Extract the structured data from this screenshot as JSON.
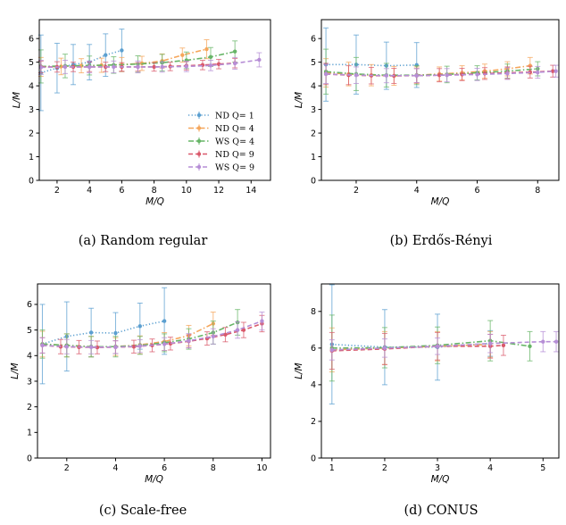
{
  "chart_data": [
    {
      "type": "line",
      "caption": "(a) Random regular",
      "xlabel": "M/Q",
      "ylabel": "L/M",
      "xlim": [
        0.9,
        15.2
      ],
      "ylim": [
        0,
        6.8
      ],
      "xticks": [
        2,
        4,
        6,
        8,
        10,
        12,
        14
      ],
      "yticks": [
        0,
        1,
        2,
        3,
        4,
        5,
        6
      ],
      "grid": false,
      "legend": {
        "position": "lower-right",
        "entries": [
          "ND Q= 1",
          "ND Q= 4",
          "WS Q= 4",
          "ND Q= 9",
          "WS Q= 9"
        ]
      },
      "series": [
        {
          "name": "ND Q= 1",
          "style": "dotted",
          "color": "#5b9fd0",
          "x": [
            1,
            2,
            3,
            4,
            5,
            6
          ],
          "y": [
            4.55,
            4.75,
            4.9,
            5.0,
            5.3,
            5.5
          ],
          "err": [
            1.6,
            1.05,
            0.85,
            0.75,
            0.9,
            0.9
          ]
        },
        {
          "name": "ND Q= 4",
          "style": "dashdot",
          "color": "#f5a65b",
          "x": [
            1,
            2.25,
            3.5,
            4.75,
            6,
            7.25,
            8.5,
            9.75,
            11.25
          ],
          "y": [
            4.8,
            4.82,
            4.85,
            4.87,
            4.9,
            4.95,
            5.05,
            5.3,
            5.55
          ],
          "err": [
            0.4,
            0.35,
            0.3,
            0.3,
            0.3,
            0.3,
            0.3,
            0.3,
            0.4
          ]
        },
        {
          "name": "WS Q= 4",
          "style": "dashdot",
          "color": "#67b567",
          "x": [
            1,
            2.5,
            4,
            5.5,
            7,
            8.5,
            10,
            11.5,
            13
          ],
          "y": [
            4.82,
            4.84,
            4.86,
            4.88,
            4.92,
            4.98,
            5.08,
            5.22,
            5.45
          ],
          "err": [
            0.7,
            0.5,
            0.4,
            0.35,
            0.35,
            0.35,
            0.35,
            0.4,
            0.45
          ]
        },
        {
          "name": "ND Q= 9",
          "style": "dashed",
          "color": "#d9596b",
          "x": [
            1,
            2,
            3,
            4,
            5,
            6,
            7,
            8,
            9,
            10,
            11,
            12,
            13
          ],
          "y": [
            4.8,
            4.8,
            4.8,
            4.8,
            4.8,
            4.8,
            4.8,
            4.8,
            4.82,
            4.85,
            4.88,
            4.92,
            4.96
          ],
          "err": [
            0.25,
            0.22,
            0.2,
            0.2,
            0.2,
            0.18,
            0.18,
            0.18,
            0.18,
            0.18,
            0.2,
            0.2,
            0.2
          ]
        },
        {
          "name": "WS Q= 9",
          "style": "dashed",
          "color": "#b68ed6",
          "x": [
            1,
            2.5,
            4,
            5.5,
            7,
            8.5,
            10,
            11.5,
            13,
            14.5
          ],
          "y": [
            4.78,
            4.8,
            4.8,
            4.8,
            4.8,
            4.8,
            4.82,
            4.86,
            4.95,
            5.1
          ],
          "err": [
            0.3,
            0.28,
            0.25,
            0.25,
            0.25,
            0.22,
            0.22,
            0.22,
            0.25,
            0.3
          ]
        }
      ]
    },
    {
      "type": "line",
      "caption": "(b) Erdős-Rényi",
      "xlabel": "M/Q",
      "ylabel": "L/M",
      "xlim": [
        0.85,
        8.7
      ],
      "ylim": [
        0,
        6.8
      ],
      "xticks": [
        2,
        4,
        6,
        8
      ],
      "yticks": [
        0,
        1,
        2,
        3,
        4,
        5,
        6
      ],
      "grid": false,
      "series": [
        {
          "name": "ND Q= 1",
          "style": "dotted",
          "color": "#5b9fd0",
          "x": [
            1,
            2,
            3,
            4
          ],
          "y": [
            4.9,
            4.9,
            4.85,
            4.88
          ],
          "err": [
            1.55,
            1.25,
            1.0,
            0.95
          ]
        },
        {
          "name": "ND Q= 4",
          "style": "dashdot",
          "color": "#f5a65b",
          "x": [
            1,
            1.75,
            2.5,
            3.25,
            4,
            4.75,
            5.5,
            6.25,
            7,
            7.75
          ],
          "y": [
            4.55,
            4.5,
            4.45,
            4.42,
            4.45,
            4.5,
            4.55,
            4.62,
            4.72,
            4.85
          ],
          "err": [
            0.6,
            0.5,
            0.45,
            0.4,
            0.35,
            0.3,
            0.3,
            0.3,
            0.3,
            0.35
          ]
        },
        {
          "name": "WS Q= 4",
          "style": "dashdot",
          "color": "#67b567",
          "x": [
            1,
            2,
            3,
            4,
            5,
            6,
            7,
            8
          ],
          "y": [
            4.6,
            4.5,
            4.45,
            4.45,
            4.48,
            4.55,
            4.62,
            4.72
          ],
          "err": [
            0.95,
            0.7,
            0.5,
            0.4,
            0.35,
            0.3,
            0.3,
            0.3
          ]
        },
        {
          "name": "ND Q= 9",
          "style": "dashed",
          "color": "#d9596b",
          "x": [
            1,
            1.75,
            2.5,
            3.25,
            4,
            4.75,
            5.5,
            6.25,
            7,
            7.75,
            8.5
          ],
          "y": [
            4.5,
            4.45,
            4.43,
            4.42,
            4.43,
            4.45,
            4.48,
            4.52,
            4.55,
            4.58,
            4.62
          ],
          "err": [
            0.45,
            0.4,
            0.35,
            0.32,
            0.3,
            0.28,
            0.26,
            0.25,
            0.25,
            0.25,
            0.25
          ]
        },
        {
          "name": "WS Q= 9",
          "style": "dashed",
          "color": "#b68ed6",
          "x": [
            1,
            2,
            3,
            4,
            5,
            6,
            7,
            8,
            8.6
          ],
          "y": [
            4.5,
            4.45,
            4.43,
            4.43,
            4.45,
            4.48,
            4.52,
            4.57,
            4.62
          ],
          "err": [
            0.4,
            0.35,
            0.3,
            0.3,
            0.28,
            0.26,
            0.25,
            0.25,
            0.25
          ]
        }
      ]
    },
    {
      "type": "line",
      "caption": "(c) Scale-free",
      "xlabel": "M/Q",
      "ylabel": "L/M",
      "xlim": [
        0.8,
        10.35
      ],
      "ylim": [
        0,
        6.8
      ],
      "xticks": [
        2,
        4,
        6,
        8,
        10
      ],
      "yticks": [
        0,
        1,
        2,
        3,
        4,
        5,
        6
      ],
      "grid": false,
      "series": [
        {
          "name": "ND Q= 1",
          "style": "dotted",
          "color": "#5b9fd0",
          "x": [
            1,
            2,
            3,
            4,
            5,
            6
          ],
          "y": [
            4.45,
            4.75,
            4.9,
            4.88,
            5.15,
            5.35
          ],
          "err": [
            1.55,
            1.35,
            0.95,
            0.8,
            0.9,
            1.3
          ]
        },
        {
          "name": "ND Q= 4",
          "style": "dashdot",
          "color": "#f5a65b",
          "x": [
            1,
            2,
            3,
            4,
            5,
            6,
            7,
            8
          ],
          "y": [
            4.45,
            4.4,
            4.35,
            4.35,
            4.42,
            4.55,
            4.78,
            5.25
          ],
          "err": [
            0.5,
            0.45,
            0.4,
            0.35,
            0.35,
            0.35,
            0.4,
            0.45
          ]
        },
        {
          "name": "WS Q= 4",
          "style": "dashdot",
          "color": "#67b567",
          "x": [
            1,
            2,
            3,
            4,
            5,
            6,
            7,
            8,
            9
          ],
          "y": [
            4.45,
            4.4,
            4.35,
            4.35,
            4.4,
            4.5,
            4.65,
            4.9,
            5.3
          ],
          "err": [
            0.55,
            0.45,
            0.4,
            0.4,
            0.35,
            0.35,
            0.4,
            0.45,
            0.5
          ]
        },
        {
          "name": "ND Q= 9",
          "style": "dashed",
          "color": "#d9596b",
          "x": [
            1,
            1.75,
            2.5,
            3.25,
            4,
            4.75,
            5.5,
            6.25,
            7,
            7.75,
            8.5,
            9.25,
            10
          ],
          "y": [
            4.4,
            4.35,
            4.33,
            4.32,
            4.33,
            4.35,
            4.4,
            4.47,
            4.56,
            4.67,
            4.82,
            5.0,
            5.25
          ],
          "err": [
            0.3,
            0.28,
            0.26,
            0.25,
            0.25,
            0.25,
            0.25,
            0.25,
            0.25,
            0.26,
            0.28,
            0.3,
            0.32
          ]
        },
        {
          "name": "WS Q= 9",
          "style": "dashed",
          "color": "#b68ed6",
          "x": [
            1,
            2,
            3,
            4,
            5,
            6,
            7,
            8,
            9,
            10
          ],
          "y": [
            4.4,
            4.35,
            4.33,
            4.33,
            4.37,
            4.45,
            4.58,
            4.75,
            5.0,
            5.35
          ],
          "err": [
            0.3,
            0.28,
            0.26,
            0.25,
            0.25,
            0.25,
            0.28,
            0.3,
            0.32,
            0.35
          ]
        }
      ]
    },
    {
      "type": "line",
      "caption": "(d) CONUS",
      "xlabel": "M/Q",
      "ylabel": "L/M",
      "xlim": [
        0.8,
        5.3
      ],
      "ylim": [
        0,
        9.5
      ],
      "xticks": [
        1,
        2,
        3,
        4,
        5
      ],
      "yticks": [
        0,
        2,
        4,
        6,
        8
      ],
      "grid": false,
      "series": [
        {
          "name": "ND Q= 1",
          "style": "dotted",
          "color": "#5b9fd0",
          "x": [
            1,
            2,
            3,
            4
          ],
          "y": [
            6.2,
            6.05,
            6.05,
            6.25
          ],
          "err": [
            3.25,
            2.05,
            1.8,
            0.7
          ]
        },
        {
          "name": "ND Q= 4",
          "style": "dashdot",
          "color": "#f5a65b",
          "x": [
            1,
            2,
            3,
            4
          ],
          "y": [
            5.9,
            6.0,
            6.1,
            6.2
          ],
          "err": [
            1.2,
            0.9,
            0.8,
            0.7
          ]
        },
        {
          "name": "WS Q= 4",
          "style": "dashdot",
          "color": "#67b567",
          "x": [
            1,
            2,
            3,
            4,
            4.75
          ],
          "y": [
            6.0,
            6.02,
            6.15,
            6.4,
            6.1
          ],
          "err": [
            1.8,
            1.1,
            1.0,
            1.1,
            0.8
          ]
        },
        {
          "name": "ND Q= 9",
          "style": "dashed",
          "color": "#d9596b",
          "x": [
            1,
            2,
            3,
            4,
            4.25
          ],
          "y": [
            5.85,
            5.95,
            6.1,
            6.1,
            6.15
          ],
          "err": [
            1.0,
            0.85,
            0.75,
            0.65,
            0.55
          ]
        },
        {
          "name": "WS Q= 9",
          "style": "dashed",
          "color": "#b68ed6",
          "x": [
            1,
            2,
            3,
            4,
            5,
            5.25
          ],
          "y": [
            5.9,
            6.0,
            6.1,
            6.25,
            6.35,
            6.35
          ],
          "err": [
            0.55,
            0.5,
            0.45,
            0.5,
            0.55,
            0.55
          ]
        }
      ]
    }
  ]
}
